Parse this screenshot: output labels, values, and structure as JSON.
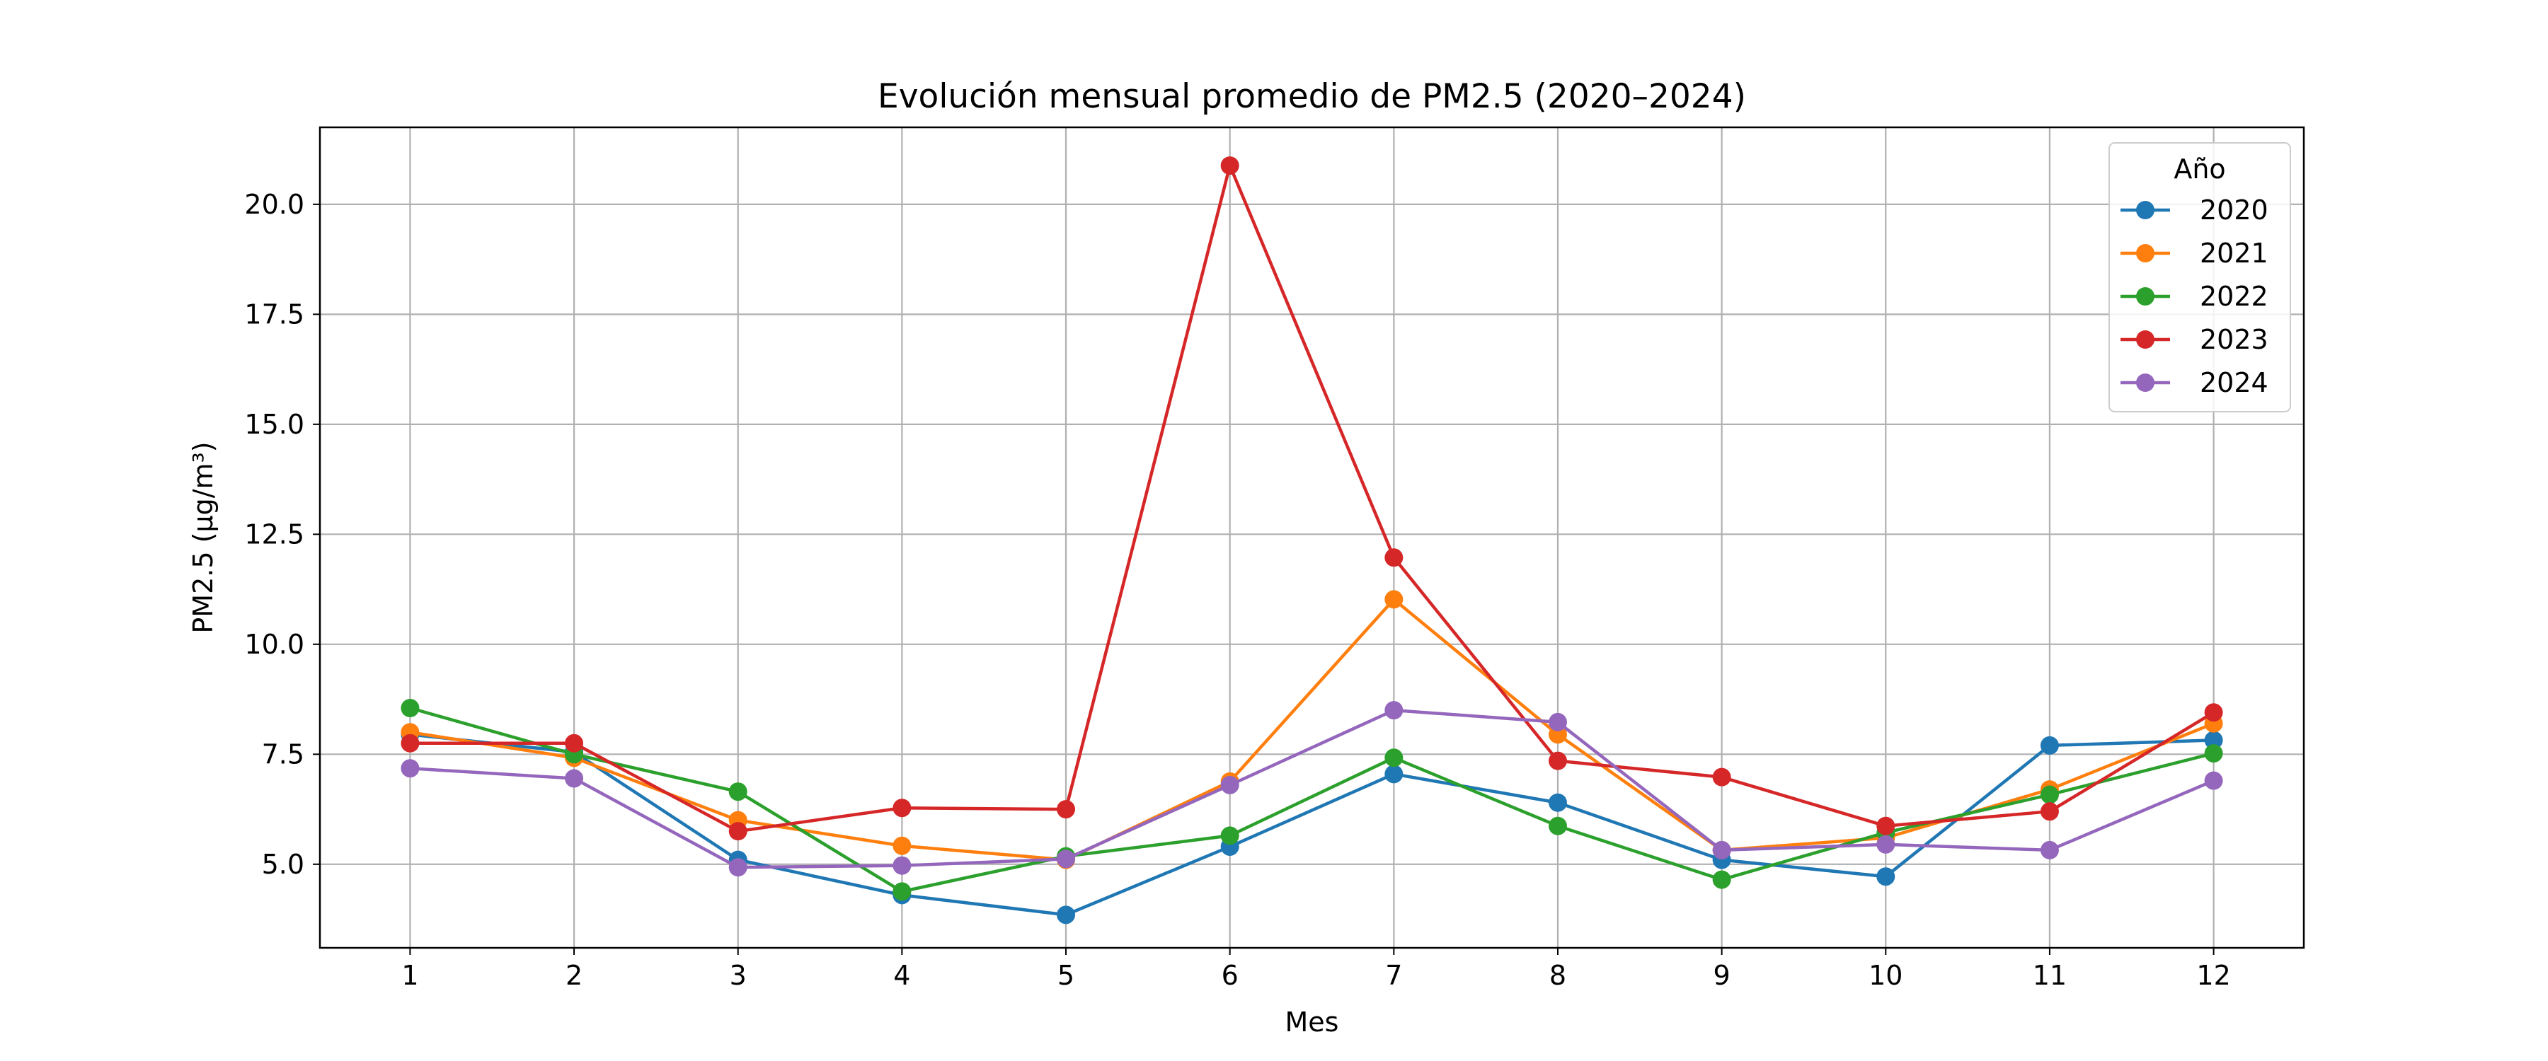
{
  "chart_data": {
    "type": "line",
    "title": "Evolución mensual promedio de PM2.5 (2020–2024)",
    "xlabel": "Mes",
    "ylabel": "PM2.5 (µg/m³)",
    "x": [
      1,
      2,
      3,
      4,
      5,
      6,
      7,
      8,
      9,
      10,
      11,
      12
    ],
    "xticks": [
      "1",
      "2",
      "3",
      "4",
      "5",
      "6",
      "7",
      "8",
      "9",
      "10",
      "11",
      "12"
    ],
    "xlim": [
      0.45,
      12.55
    ],
    "ylim": [
      3.1,
      21.75
    ],
    "yticks": [
      "5.0",
      "7.5",
      "10.0",
      "12.5",
      "15.0",
      "17.5",
      "20.0"
    ],
    "grid": true,
    "legend": {
      "title": "Año",
      "placement": "top-right"
    },
    "series": [
      {
        "name": "2020",
        "color": "#1f77b4",
        "values": [
          7.95,
          7.55,
          5.1,
          4.3,
          3.85,
          5.4,
          7.05,
          6.4,
          5.1,
          4.72,
          7.7,
          7.82
        ]
      },
      {
        "name": "2021",
        "color": "#ff7f0e",
        "values": [
          8.0,
          7.42,
          6.0,
          5.42,
          5.1,
          6.88,
          11.02,
          7.95,
          5.32,
          5.6,
          6.7,
          8.2
        ]
      },
      {
        "name": "2022",
        "color": "#2ca02c",
        "values": [
          8.55,
          7.5,
          6.65,
          4.38,
          5.18,
          5.65,
          7.42,
          5.87,
          4.65,
          5.72,
          6.58,
          7.52
        ]
      },
      {
        "name": "2023",
        "color": "#d62728",
        "values": [
          7.75,
          7.75,
          5.75,
          6.28,
          6.25,
          20.88,
          11.97,
          7.35,
          6.98,
          5.87,
          6.2,
          8.45
        ]
      },
      {
        "name": "2024",
        "color": "#9467bd",
        "values": [
          7.18,
          6.95,
          4.93,
          4.97,
          5.12,
          6.8,
          8.5,
          8.23,
          5.32,
          5.45,
          5.32,
          6.9
        ]
      }
    ]
  }
}
